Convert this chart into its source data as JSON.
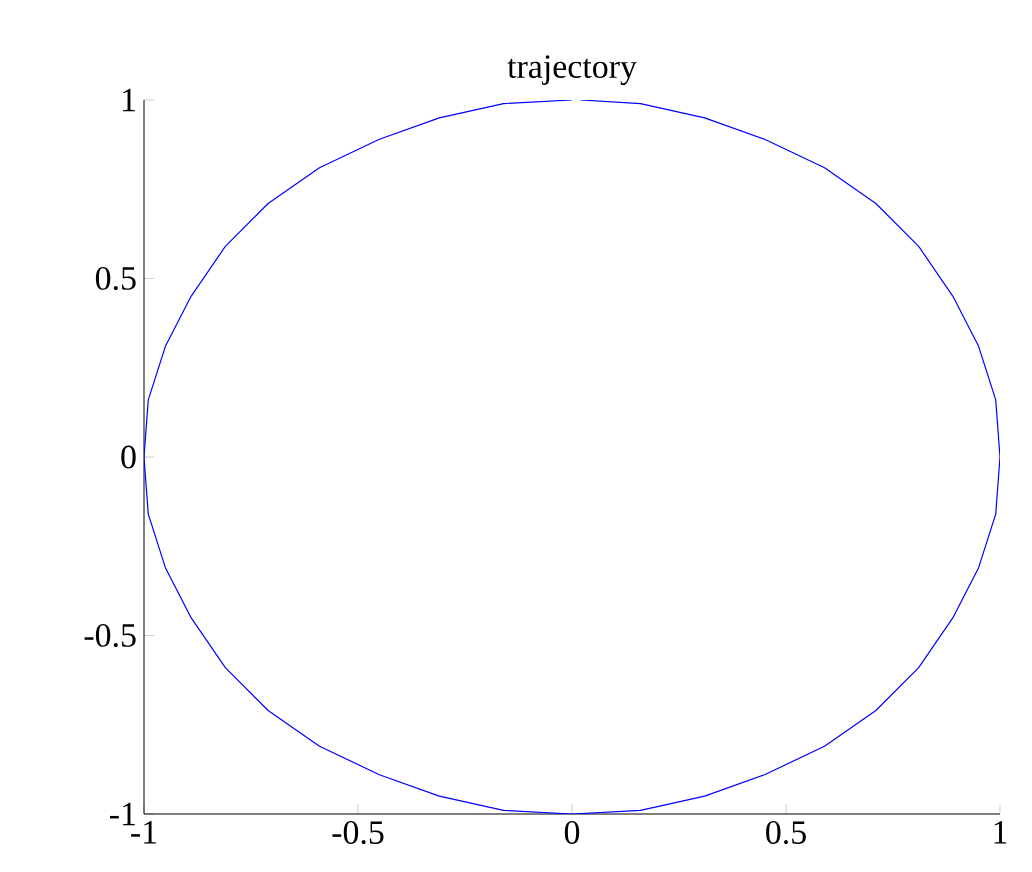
{
  "chart_data": {
    "type": "line",
    "title": "trajectory",
    "x": [
      0.02,
      0.16,
      0.31,
      0.45,
      0.59,
      0.71,
      0.81,
      0.89,
      0.95,
      0.99,
      1,
      0.99,
      0.95,
      0.89,
      0.81,
      0.71,
      0.59,
      0.45,
      0.31,
      0.16,
      0,
      -0.16,
      -0.31,
      -0.45,
      -0.59,
      -0.71,
      -0.81,
      -0.89,
      -0.95,
      -0.99,
      -1,
      -0.99,
      -0.95,
      -0.89,
      -0.81,
      -0.71,
      -0.59,
      -0.45,
      -0.31,
      -0.16,
      0
    ],
    "series": [
      {
        "color": "#0000ff",
        "values": [
          1,
          0.99,
          0.95,
          0.89,
          0.81,
          0.71,
          0.59,
          0.45,
          0.31,
          0.16,
          0,
          -0.16,
          -0.31,
          -0.45,
          -0.59,
          -0.71,
          -0.81,
          -0.89,
          -0.95,
          -0.99,
          -1,
          -0.99,
          -0.95,
          -0.89,
          -0.81,
          -0.71,
          -0.59,
          -0.45,
          -0.31,
          -0.16,
          0,
          0.16,
          0.31,
          0.45,
          0.59,
          0.71,
          0.81,
          0.89,
          0.95,
          0.99,
          1
        ]
      }
    ],
    "xlim": [
      -1,
      1
    ],
    "ylim": [
      -1,
      1
    ],
    "xticks": [
      -1,
      -0.5,
      0,
      0.5,
      1
    ],
    "yticks": [
      -1,
      -0.5,
      0,
      0.5,
      1
    ]
  }
}
